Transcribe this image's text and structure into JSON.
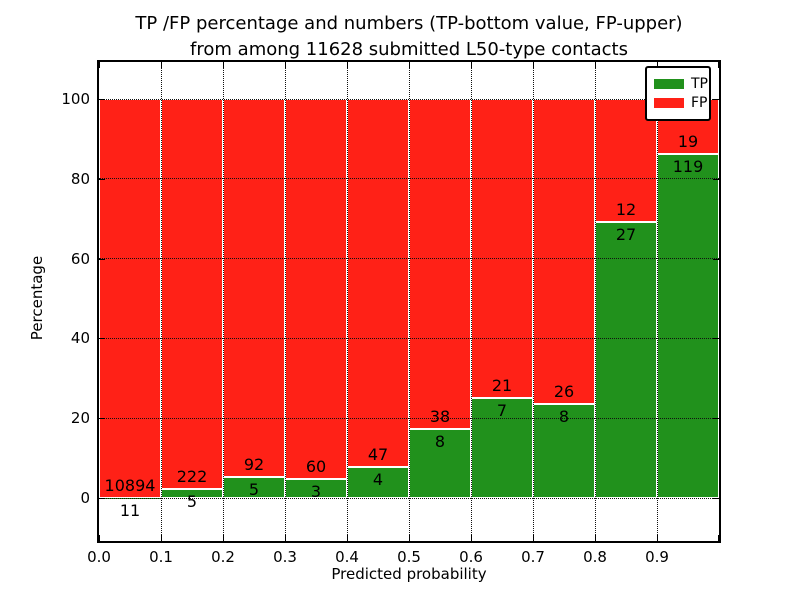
{
  "title": {
    "line1": "TP /FP percentage and numbers (TP-bottom value, FP-upper)",
    "line2": "from among 11628 submitted L50-type contacts"
  },
  "axes": {
    "xlabel": "Predicted probability",
    "ylabel": "Percentage",
    "x_tick_labels": [
      "0.0",
      "0.1",
      "0.2",
      "0.3",
      "0.4",
      "0.5",
      "0.6",
      "0.7",
      "0.8",
      "0.9"
    ],
    "y_tick_labels": [
      "0",
      "20",
      "40",
      "60",
      "80",
      "100"
    ],
    "y_tick_values": [
      0,
      20,
      40,
      60,
      80,
      100
    ],
    "x_range": [
      0.0,
      1.0
    ],
    "y_range": [
      0,
      100
    ],
    "grid_style": "dotted"
  },
  "legend": {
    "position": "upper-right",
    "items": [
      {
        "label": "TP",
        "color": "#21911c"
      },
      {
        "label": "FP",
        "color": "#ff2117"
      }
    ]
  },
  "chart_data": {
    "type": "bar",
    "stacked": true,
    "normalized_to_percent": true,
    "bin_width": 0.1,
    "total_contacts": 11628,
    "categories": [
      "0.0-0.1",
      "0.1-0.2",
      "0.2-0.3",
      "0.3-0.4",
      "0.4-0.5",
      "0.5-0.6",
      "0.6-0.7",
      "0.7-0.8",
      "0.8-0.9",
      "0.9-1.0"
    ],
    "series": [
      {
        "name": "TP",
        "color": "#21911c",
        "counts": [
          11,
          5,
          5,
          3,
          4,
          8,
          7,
          8,
          27,
          119
        ]
      },
      {
        "name": "FP",
        "color": "#ff2117",
        "counts": [
          10894,
          222,
          92,
          60,
          47,
          38,
          21,
          26,
          12,
          19
        ]
      }
    ],
    "tp_percent": [
      0.1,
      2.2,
      5.2,
      4.8,
      7.8,
      17.4,
      25.0,
      23.5,
      69.2,
      86.2
    ],
    "label_rule": "FP count printed just above TP/FP boundary, TP count just below it"
  },
  "colors": {
    "tp_green": "#21911c",
    "fp_red": "#ff2117",
    "background": "#ffffff",
    "spine": "#000000"
  }
}
